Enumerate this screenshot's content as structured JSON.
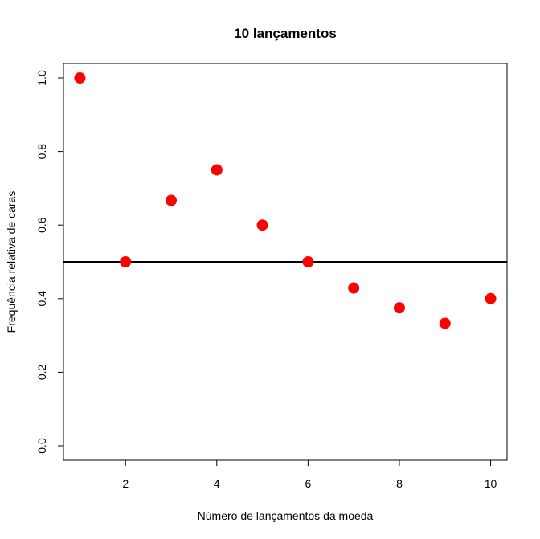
{
  "chart_data": {
    "type": "scatter",
    "title": "10 lançamentos",
    "xlabel": "Número de lançamentos da moeda",
    "ylabel": "Frequência relativa de caras",
    "xlim": [
      0.64,
      10.36
    ],
    "ylim": [
      0.0,
      1.0
    ],
    "x_ticks": [
      2,
      4,
      6,
      8,
      10
    ],
    "y_ticks": [
      "0.0",
      "0.2",
      "0.4",
      "0.6",
      "0.8",
      "1.0"
    ],
    "series": [
      {
        "x": [
          1,
          2,
          3,
          4,
          5,
          6,
          7,
          8,
          9,
          10
        ],
        "y": [
          1.0,
          0.5,
          0.667,
          0.75,
          0.6,
          0.5,
          0.429,
          0.375,
          0.333,
          0.4
        ],
        "color": "#ff0000"
      }
    ],
    "reference_line": {
      "y": 0.5,
      "color": "#000000"
    },
    "grid": false
  }
}
